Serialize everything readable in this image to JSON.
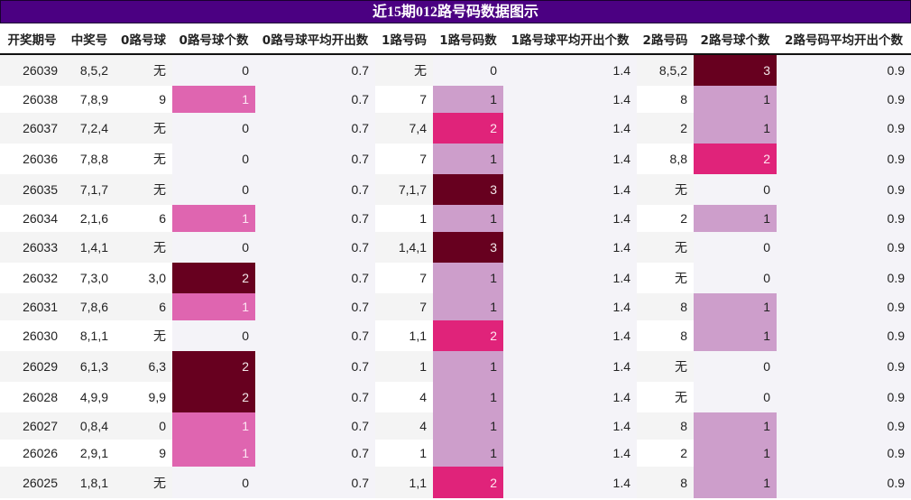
{
  "title": "近15期012路号码数据图示",
  "columns": [
    "开奖期号",
    "中奖号",
    "0路号球",
    "0路号球个数",
    "0路号球平均开出数",
    "1路号码",
    "1路号码数",
    "1路号球平均开出个数",
    "2路号码",
    "2路号球个数",
    "2路号码平均开出个数"
  ],
  "colors": {
    "count_3": "#67001f",
    "count_2_road1_road2": "#e0237a",
    "count_2_road0": "#67001f",
    "count_1_road0": "#df65b0",
    "count_1_road1_road2": "#cd9ecb",
    "count_0": "#f4f3f8",
    "header_bg": "#4b0082"
  },
  "rows": [
    {
      "period": "26039",
      "number": "8,5,2",
      "r0": "无",
      "r0_count": "0",
      "r0_avg": "0.7",
      "r1": "无",
      "r1_count": "0",
      "r1_avg": "1.4",
      "r2": "8,5,2",
      "r2_count": "3",
      "r2_avg": "0.9"
    },
    {
      "period": "26038",
      "number": "7,8,9",
      "r0": "9",
      "r0_count": "1",
      "r0_avg": "0.7",
      "r1": "7",
      "r1_count": "1",
      "r1_avg": "1.4",
      "r2": "8",
      "r2_count": "1",
      "r2_avg": "0.9"
    },
    {
      "period": "26037",
      "number": "7,2,4",
      "r0": "无",
      "r0_count": "0",
      "r0_avg": "0.7",
      "r1": "7,4",
      "r1_count": "2",
      "r1_avg": "1.4",
      "r2": "2",
      "r2_count": "1",
      "r2_avg": "0.9"
    },
    {
      "period": "26036",
      "number": "7,8,8",
      "r0": "无",
      "r0_count": "0",
      "r0_avg": "0.7",
      "r1": "7",
      "r1_count": "1",
      "r1_avg": "1.4",
      "r2": "8,8",
      "r2_count": "2",
      "r2_avg": "0.9"
    },
    {
      "period": "26035",
      "number": "7,1,7",
      "r0": "无",
      "r0_count": "0",
      "r0_avg": "0.7",
      "r1": "7,1,7",
      "r1_count": "3",
      "r1_avg": "1.4",
      "r2": "无",
      "r2_count": "0",
      "r2_avg": "0.9"
    },
    {
      "period": "26034",
      "number": "2,1,6",
      "r0": "6",
      "r0_count": "1",
      "r0_avg": "0.7",
      "r1": "1",
      "r1_count": "1",
      "r1_avg": "1.4",
      "r2": "2",
      "r2_count": "1",
      "r2_avg": "0.9"
    },
    {
      "period": "26033",
      "number": "1,4,1",
      "r0": "无",
      "r0_count": "0",
      "r0_avg": "0.7",
      "r1": "1,4,1",
      "r1_count": "3",
      "r1_avg": "1.4",
      "r2": "无",
      "r2_count": "0",
      "r2_avg": "0.9"
    },
    {
      "period": "26032",
      "number": "7,3,0",
      "r0": "3,0",
      "r0_count": "2",
      "r0_avg": "0.7",
      "r1": "7",
      "r1_count": "1",
      "r1_avg": "1.4",
      "r2": "无",
      "r2_count": "0",
      "r2_avg": "0.9"
    },
    {
      "period": "26031",
      "number": "7,8,6",
      "r0": "6",
      "r0_count": "1",
      "r0_avg": "0.7",
      "r1": "7",
      "r1_count": "1",
      "r1_avg": "1.4",
      "r2": "8",
      "r2_count": "1",
      "r2_avg": "0.9"
    },
    {
      "period": "26030",
      "number": "8,1,1",
      "r0": "无",
      "r0_count": "0",
      "r0_avg": "0.7",
      "r1": "1,1",
      "r1_count": "2",
      "r1_avg": "1.4",
      "r2": "8",
      "r2_count": "1",
      "r2_avg": "0.9"
    },
    {
      "period": "26029",
      "number": "6,1,3",
      "r0": "6,3",
      "r0_count": "2",
      "r0_avg": "0.7",
      "r1": "1",
      "r1_count": "1",
      "r1_avg": "1.4",
      "r2": "无",
      "r2_count": "0",
      "r2_avg": "0.9"
    },
    {
      "period": "26028",
      "number": "4,9,9",
      "r0": "9,9",
      "r0_count": "2",
      "r0_avg": "0.7",
      "r1": "4",
      "r1_count": "1",
      "r1_avg": "1.4",
      "r2": "无",
      "r2_count": "0",
      "r2_avg": "0.9"
    },
    {
      "period": "26027",
      "number": "0,8,4",
      "r0": "0",
      "r0_count": "1",
      "r0_avg": "0.7",
      "r1": "4",
      "r1_count": "1",
      "r1_avg": "1.4",
      "r2": "8",
      "r2_count": "1",
      "r2_avg": "0.9"
    },
    {
      "period": "26026",
      "number": "2,9,1",
      "r0": "9",
      "r0_count": "1",
      "r0_avg": "0.7",
      "r1": "1",
      "r1_count": "1",
      "r1_avg": "1.4",
      "r2": "2",
      "r2_count": "1",
      "r2_avg": "0.9"
    },
    {
      "period": "26025",
      "number": "1,8,1",
      "r0": "无",
      "r0_count": "0",
      "r0_avg": "0.7",
      "r1": "1,1",
      "r1_count": "2",
      "r1_avg": "1.4",
      "r2": "8",
      "r2_count": "1",
      "r2_avg": "0.9"
    }
  ]
}
